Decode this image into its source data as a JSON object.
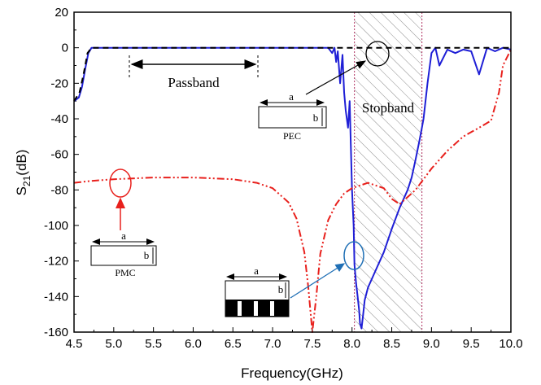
{
  "chart_data": {
    "type": "line",
    "xlabel": "Frequency(GHz)",
    "ylabel_main": "S",
    "ylabel_sub": "21",
    "ylabel_unit": "(dB)",
    "xlim": [
      4.5,
      10.0
    ],
    "ylim": [
      -160,
      20
    ],
    "xticks": [
      "4.5",
      "5.0",
      "5.5",
      "6.0",
      "6.5",
      "7.0",
      "7.5",
      "8.0",
      "8.5",
      "9.0",
      "9.5",
      "10.0"
    ],
    "yticks": [
      "20",
      "0",
      "-20",
      "-40",
      "-60",
      "-80",
      "-100",
      "-120",
      "-140",
      "-160"
    ],
    "xtick_values": [
      4.5,
      5.0,
      5.5,
      6.0,
      6.5,
      7.0,
      7.5,
      8.0,
      8.5,
      9.0,
      9.5,
      10.0
    ],
    "ytick_values": [
      20,
      0,
      -20,
      -40,
      -60,
      -80,
      -100,
      -120,
      -140,
      -160
    ],
    "annotations": {
      "passband": "Passband",
      "stopband": "Stopband",
      "pec": "PEC",
      "pmc": "PMC",
      "a": "a",
      "b": "b"
    },
    "passband_range": [
      5.2,
      6.8
    ],
    "stopband_range": [
      8.03,
      8.88
    ],
    "series": [
      {
        "style": "solid",
        "color": "#1f1fd6",
        "x": [
          4.5,
          4.56,
          4.6,
          4.64,
          4.68,
          4.72,
          5.0,
          5.5,
          6.0,
          6.5,
          7.0,
          7.5,
          7.7,
          7.75,
          7.78,
          7.8,
          7.82,
          7.85,
          7.88,
          7.9,
          7.92,
          7.95,
          7.97,
          8.0,
          8.02,
          8.03,
          8.05,
          8.07,
          8.09,
          8.1,
          8.12,
          8.14,
          8.16,
          8.2,
          8.3,
          8.4,
          8.5,
          8.55,
          8.6,
          8.65,
          8.7,
          8.75,
          8.8,
          8.85,
          8.88,
          8.9,
          8.95,
          9.0,
          9.05,
          9.1,
          9.2,
          9.3,
          9.4,
          9.5,
          9.6,
          9.7,
          9.8,
          9.9,
          10.0
        ],
        "y": [
          -30,
          -28,
          -22,
          -12,
          -3,
          0,
          0,
          0,
          0,
          0,
          0,
          0,
          0,
          -3,
          0,
          -8,
          -2,
          -20,
          -4,
          -25,
          -35,
          -45,
          -30,
          -80,
          -100,
          -122,
          -132,
          -140,
          -148,
          -155,
          -158,
          -150,
          -142,
          -135,
          -125,
          -115,
          -102,
          -96,
          -90,
          -85,
          -80,
          -73,
          -63,
          -52,
          -45,
          -40,
          -20,
          -3,
          0,
          -10,
          -1,
          -3,
          -1,
          -2,
          -15,
          0,
          -2,
          0,
          -1
        ]
      },
      {
        "style": "dashed",
        "color": "#000000",
        "x": [
          4.5,
          4.57,
          4.62,
          4.67,
          4.72,
          5.0,
          6.0,
          7.0,
          8.0,
          9.0,
          10.0
        ],
        "y": [
          -30,
          -25,
          -15,
          -3,
          0,
          0,
          0,
          0,
          0,
          0,
          0
        ]
      },
      {
        "style": "dashdotdot",
        "color": "#e8201c",
        "x": [
          4.5,
          4.7,
          5.0,
          5.5,
          6.0,
          6.5,
          6.8,
          7.0,
          7.2,
          7.3,
          7.4,
          7.45,
          7.5,
          7.55,
          7.6,
          7.7,
          7.8,
          7.9,
          8.0,
          8.2,
          8.4,
          8.5,
          8.6,
          8.8,
          9.0,
          9.2,
          9.4,
          9.6,
          9.75,
          9.85,
          9.9,
          10.0
        ],
        "y": [
          -76,
          -75,
          -74,
          -73,
          -73,
          -74,
          -76,
          -79,
          -87,
          -96,
          -115,
          -135,
          -160,
          -140,
          -116,
          -97,
          -88,
          -82,
          -79,
          -76,
          -79,
          -85,
          -88,
          -80,
          -68,
          -58,
          -50,
          -45,
          -41,
          -25,
          -10,
          -1
        ]
      }
    ]
  }
}
